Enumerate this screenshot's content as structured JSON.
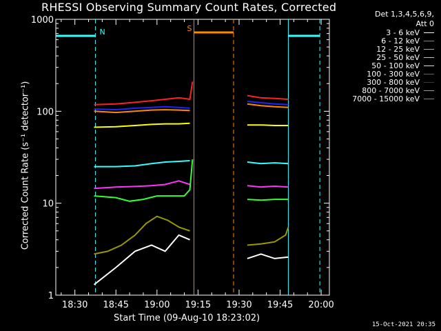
{
  "title": "RHESSI Observing Summary Count Rates, Corrected",
  "timestamp": "15-Oct-2021 20:35",
  "legend": {
    "header_line1": "Det 1,3,4,5,6,9,",
    "header_line2": "Att 0"
  },
  "chart_data": {
    "type": "line",
    "title": "RHESSI Observing Summary Count Rates, Corrected",
    "xlabel": "Start Time (09-Aug-10 18:23:02)",
    "ylabel": "Corrected Count Rate (s⁻¹ detector⁻¹)",
    "y_scale": "log",
    "ylim": [
      1,
      1000
    ],
    "xlim": [
      "18:23:02",
      "20:03:00"
    ],
    "x_ticks": [
      "18:30",
      "18:45",
      "19:00",
      "19:15",
      "19:30",
      "19:45",
      "20:00"
    ],
    "y_ticks": [
      "1",
      "10",
      "100",
      "1000"
    ],
    "legend_position": "right",
    "series": [
      {
        "name": "3 - 6 keV",
        "color": "#ffffff",
        "segments": [
          {
            "x": [
              "18:37",
              "18:45",
              "18:52",
              "18:58",
              "19:03",
              "19:08",
              "19:12"
            ],
            "y": [
              1.3,
              2.0,
              3.0,
              3.5,
              3.0,
              4.5,
              4.0
            ]
          },
          {
            "x": [
              "19:33",
              "19:38",
              "19:43",
              "19:48"
            ],
            "y": [
              2.5,
              2.8,
              2.5,
              2.6
            ]
          }
        ]
      },
      {
        "name": "6 - 12 keV",
        "color": "#ff33ff",
        "segments": [
          {
            "x": [
              "18:37",
              "18:45",
              "18:52",
              "18:58",
              "19:03",
              "19:08",
              "19:12"
            ],
            "y": [
              14.5,
              15.0,
              15.2,
              15.5,
              16.0,
              17.5,
              16.0
            ]
          },
          {
            "x": [
              "19:33",
              "19:38",
              "19:43",
              "19:48"
            ],
            "y": [
              15.5,
              15.0,
              15.3,
              15.0
            ]
          }
        ]
      },
      {
        "name": "12 - 25 keV",
        "color": "#33ff33",
        "segments": [
          {
            "x": [
              "18:37",
              "18:45",
              "18:50",
              "18:55",
              "19:00",
              "19:05",
              "19:10",
              "19:12",
              "19:13"
            ],
            "y": [
              12.0,
              11.5,
              10.5,
              11.0,
              12.0,
              12.0,
              12.0,
              14.0,
              30.0
            ]
          },
          {
            "x": [
              "19:33",
              "19:38",
              "19:43",
              "19:48"
            ],
            "y": [
              11.0,
              10.8,
              11.0,
              11.0
            ]
          }
        ]
      },
      {
        "name": "25 - 50 keV",
        "color": "#33ffff",
        "segments": [
          {
            "x": [
              "18:37",
              "18:45",
              "18:52",
              "18:58",
              "19:03",
              "19:08",
              "19:12"
            ],
            "y": [
              25.0,
              25.0,
              25.5,
              27.0,
              28.0,
              28.5,
              29.0
            ]
          },
          {
            "x": [
              "19:33",
              "19:38",
              "19:43",
              "19:48"
            ],
            "y": [
              28.0,
              27.0,
              27.5,
              27.0
            ]
          }
        ]
      },
      {
        "name": "50 - 100 keV",
        "color": "#ffff00",
        "segments": [
          {
            "x": [
              "18:37",
              "18:45",
              "18:52",
              "18:58",
              "19:03",
              "19:08",
              "19:12"
            ],
            "y": [
              67.0,
              68.0,
              70.0,
              72.0,
              73.0,
              73.0,
              74.0
            ]
          },
          {
            "x": [
              "19:33",
              "19:38",
              "19:43",
              "19:48"
            ],
            "y": [
              71.0,
              71.0,
              70.0,
              70.0
            ]
          }
        ]
      },
      {
        "name": "100 - 300 keV",
        "color": "#ff2222",
        "segments": [
          {
            "x": [
              "18:37",
              "18:45",
              "18:52",
              "18:58",
              "19:03",
              "19:08",
              "19:12",
              "19:13"
            ],
            "y": [
              118.0,
              120.0,
              125.0,
              130.0,
              135.0,
              140.0,
              135.0,
              210.0
            ]
          },
          {
            "x": [
              "19:33",
              "19:38",
              "19:43",
              "19:48"
            ],
            "y": [
              148.0,
              140.0,
              138.0,
              135.0
            ]
          }
        ]
      },
      {
        "name": "300 - 800 keV",
        "color": "#2222ff",
        "segments": [
          {
            "x": [
              "18:37",
              "18:45",
              "18:52",
              "18:58",
              "19:03",
              "19:08",
              "19:12"
            ],
            "y": [
              106.0,
              104.0,
              108.0,
              110.0,
              112.0,
              110.0,
              108.0
            ]
          },
          {
            "x": [
              "19:33",
              "19:38",
              "19:43",
              "19:48"
            ],
            "y": [
              128.0,
              124.0,
              120.0,
              118.0
            ]
          }
        ]
      },
      {
        "name": "800 - 7000 keV",
        "color": "#ff8800",
        "segments": [
          {
            "x": [
              "18:37",
              "18:45",
              "18:52",
              "18:58",
              "19:03",
              "19:08",
              "19:12"
            ],
            "y": [
              100.0,
              97.0,
              100.0,
              103.0,
              104.0,
              103.0,
              102.0
            ]
          },
          {
            "x": [
              "19:33",
              "19:38",
              "19:43",
              "19:48"
            ],
            "y": [
              120.0,
              115.0,
              112.0,
              110.0
            ]
          }
        ]
      },
      {
        "name": "7000 - 15000 keV",
        "color": "#999900",
        "segments": [
          {
            "x": [
              "18:37",
              "18:42",
              "18:47",
              "18:52",
              "18:56",
              "19:00",
              "19:04",
              "19:08",
              "19:12"
            ],
            "y": [
              2.8,
              3.0,
              3.5,
              4.5,
              6.0,
              7.2,
              6.5,
              5.5,
              5.0
            ]
          },
          {
            "x": [
              "19:33",
              "19:38",
              "19:43",
              "19:47",
              "19:48"
            ],
            "y": [
              3.5,
              3.6,
              3.8,
              4.5,
              5.5
            ]
          }
        ]
      }
    ],
    "flags": [
      {
        "label": "N",
        "color": "#33ffff",
        "from": "18:23:02",
        "to": "18:37:30",
        "y": 660
      },
      {
        "label": "S",
        "color": "#ff8800",
        "from": "19:13:30",
        "to": "19:28:00",
        "y": 720
      },
      {
        "label": "",
        "color": "#33ffff",
        "from": "19:48:00",
        "to": "19:59:30",
        "y": 660
      }
    ],
    "vlines": [
      {
        "t": "18:37:30",
        "color": "#33ffff",
        "dashed": true
      },
      {
        "t": "19:13:30",
        "color": "#ff8800",
        "dashed": false
      },
      {
        "t": "19:28:00",
        "color": "#ff8800",
        "dashed": true
      },
      {
        "t": "19:48:00",
        "color": "#33ffff",
        "dashed": false
      },
      {
        "t": "19:59:30",
        "color": "#33ffff",
        "dashed": true
      }
    ]
  }
}
